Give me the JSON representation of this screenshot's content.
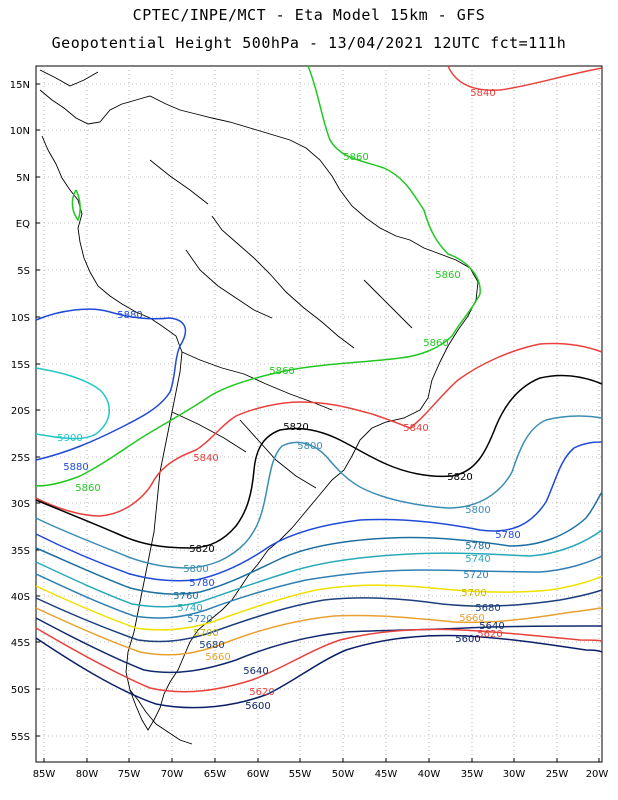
{
  "header": {
    "line1": "CPTEC/INPE/MCT -  Eta Model 15km - GFS",
    "line2": "Geopotential Height 500hPa - 13/04/2021 12UTC fct=111h"
  },
  "axes": {
    "lat_labels": [
      "15N",
      "10N",
      "5N",
      "EQ",
      "5S",
      "10S",
      "15S",
      "20S",
      "25S",
      "30S",
      "35S",
      "40S",
      "45S",
      "50S",
      "55S"
    ],
    "lon_labels": [
      "85W",
      "80W",
      "75W",
      "70W",
      "65W",
      "60W",
      "55W",
      "50W",
      "45W",
      "40W",
      "35W",
      "30W",
      "25W",
      "20W"
    ]
  },
  "contour_colors": {
    "5600": "#0b1f66",
    "5620": "#e8403c",
    "5640": "#102a6e",
    "5660": "#e8a030",
    "5680": "#1c3e7a",
    "5700": "#f0e000",
    "5720": "#2f7fb5",
    "5740": "#27a9b8",
    "5760": "#1d6fa0",
    "5780": "#1f4ad6",
    "5800": "#3a8db4",
    "5820": "#000000",
    "5840": "#e8403c",
    "5860": "#22c722",
    "5880": "#1f4ad6",
    "5900": "#22c7c7"
  },
  "contour_labels": [
    {
      "text": "5840",
      "level": "5840"
    },
    {
      "text": "5860",
      "level": "5860"
    },
    {
      "text": "5860",
      "level": "5860"
    },
    {
      "text": "5860",
      "level": "5860"
    },
    {
      "text": "5860",
      "level": "5860"
    },
    {
      "text": "5880",
      "level": "5880"
    },
    {
      "text": "5900",
      "level": "5900"
    },
    {
      "text": "5880",
      "level": "5880"
    },
    {
      "text": "5860",
      "level": "5860"
    },
    {
      "text": "5840",
      "level": "5840"
    },
    {
      "text": "5820",
      "level": "5820"
    },
    {
      "text": "5800",
      "level": "5800"
    },
    {
      "text": "5840",
      "level": "5840"
    },
    {
      "text": "5820",
      "level": "5820"
    },
    {
      "text": "5800",
      "level": "5800"
    },
    {
      "text": "5780",
      "level": "5780"
    },
    {
      "text": "5820",
      "level": "5820"
    },
    {
      "text": "5780",
      "level": "5780"
    },
    {
      "text": "5740",
      "level": "5740"
    },
    {
      "text": "5720",
      "level": "5720"
    },
    {
      "text": "5800",
      "level": "5800"
    },
    {
      "text": "5780",
      "level": "5780"
    },
    {
      "text": "5760",
      "level": "5760"
    },
    {
      "text": "5740",
      "level": "5740"
    },
    {
      "text": "5720",
      "level": "5720"
    },
    {
      "text": "5700",
      "level": "5700"
    },
    {
      "text": "5680",
      "level": "5680"
    },
    {
      "text": "5660",
      "level": "5660"
    },
    {
      "text": "5640",
      "level": "5640"
    },
    {
      "text": "5620",
      "level": "5620"
    },
    {
      "text": "5600",
      "level": "5600"
    },
    {
      "text": "5700",
      "level": "5700"
    },
    {
      "text": "5680",
      "level": "5680"
    },
    {
      "text": "5660",
      "level": "5660"
    },
    {
      "text": "5640",
      "level": "5640"
    },
    {
      "text": "5620",
      "level": "5620"
    },
    {
      "text": "5600",
      "level": "5600"
    }
  ]
}
